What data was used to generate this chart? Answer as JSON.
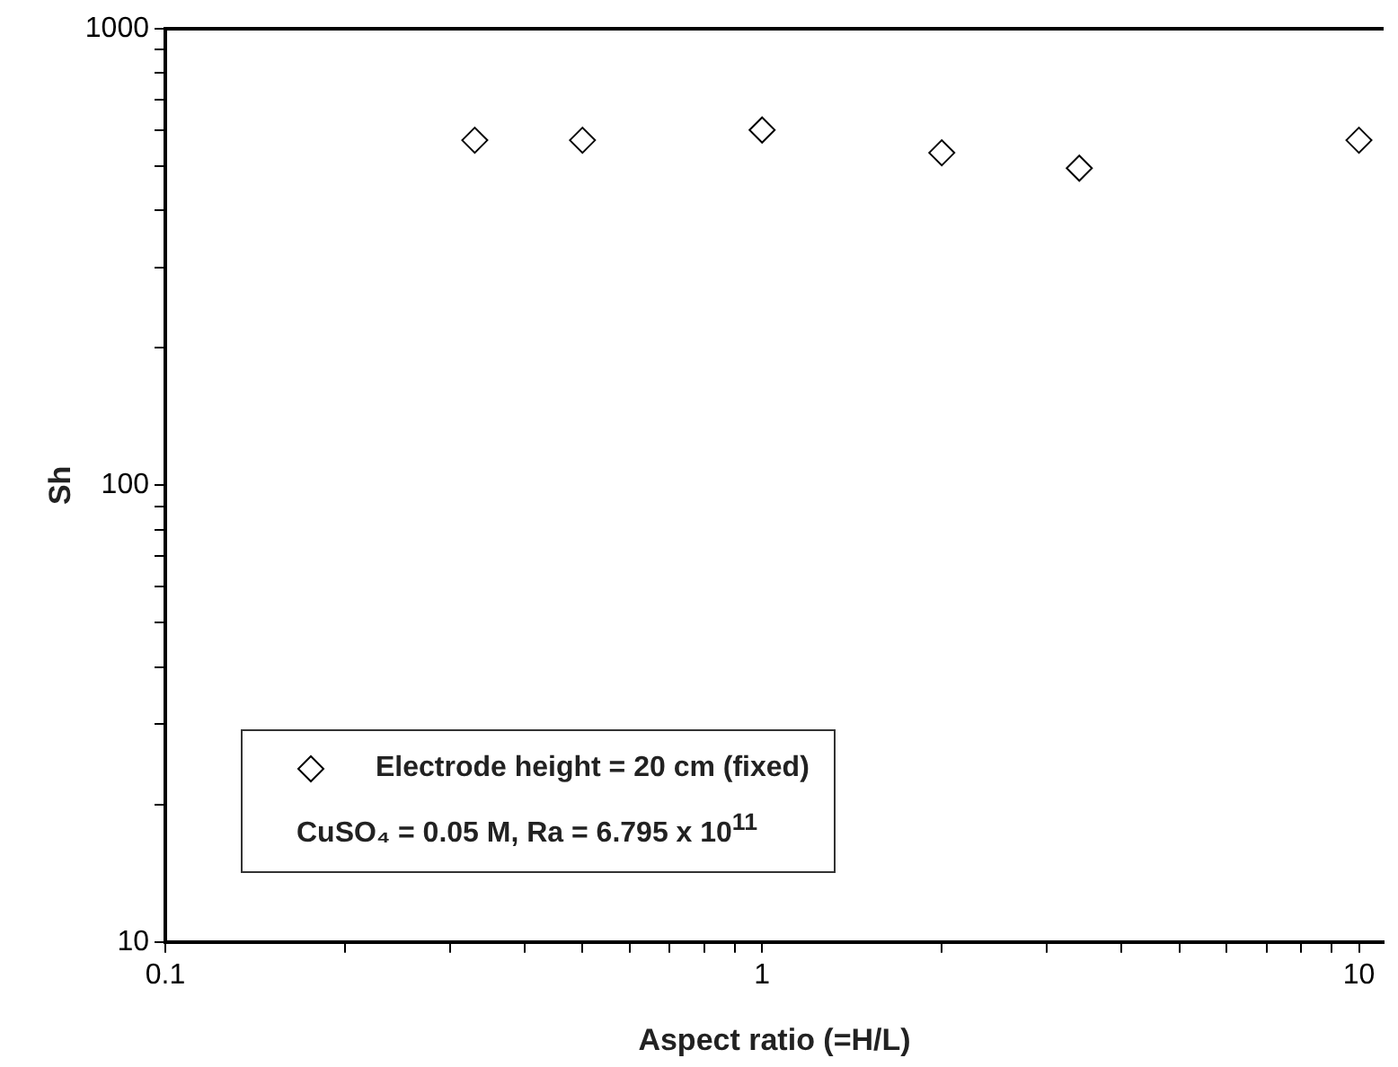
{
  "chart_data": {
    "type": "scatter",
    "xlabel": "Aspect ratio (=H/L)",
    "ylabel": "Sh",
    "log": "xy",
    "marker": "diamond",
    "legend": "bottom left",
    "grid": false,
    "annotations": [
      "CuSO₄ = 0.05 M,  Ra = 6.795 x 10$^{11}$"
    ],
    "xlim": [
      0.1,
      11
    ],
    "ylim": [
      10,
      1000
    ],
    "xticks": [
      0.1,
      {
        "value": 0.2,
        "label": null
      },
      {
        "value": 0.3,
        "label": null
      },
      {
        "value": 0.4,
        "label": null
      },
      {
        "value": 0.5,
        "label": null
      },
      {
        "value": 0.6,
        "label": null
      },
      {
        "value": 0.7,
        "label": null
      },
      {
        "value": 0.8,
        "label": null
      },
      {
        "value": 0.9,
        "label": null
      },
      1,
      {
        "value": 2,
        "label": null
      },
      {
        "value": 3,
        "label": null
      },
      {
        "value": 4,
        "label": null
      },
      {
        "value": 5,
        "label": null
      },
      {
        "value": 6,
        "label": null
      },
      {
        "value": 7,
        "label": null
      },
      {
        "value": 8,
        "label": null
      },
      {
        "value": 9,
        "label": null
      },
      10
    ],
    "yticks": [
      10,
      {
        "value": 20,
        "label": null
      },
      {
        "value": 30,
        "label": null
      },
      {
        "value": 40,
        "label": null
      },
      {
        "value": 50,
        "label": null
      },
      {
        "value": 60,
        "label": null
      },
      {
        "value": 70,
        "label": null
      },
      {
        "value": 80,
        "label": null
      },
      {
        "value": 90,
        "label": null
      },
      100,
      {
        "value": 200,
        "label": null
      },
      {
        "value": 300,
        "label": null
      },
      {
        "value": 400,
        "label": null
      },
      {
        "value": 500,
        "label": null
      },
      {
        "value": 600,
        "label": null
      },
      {
        "value": 700,
        "label": null
      },
      {
        "value": 800,
        "label": null
      },
      {
        "value": 900,
        "label": null
      },
      1000
    ],
    "series": [
      {
        "name": "Electrode height = 20 cm (fixed)",
        "color": "#000000",
        "x": [
          0.33,
          0.5,
          1,
          2,
          3.4,
          10
        ],
        "values": [
          570,
          570,
          600,
          535,
          495,
          570
        ]
      }
    ]
  }
}
